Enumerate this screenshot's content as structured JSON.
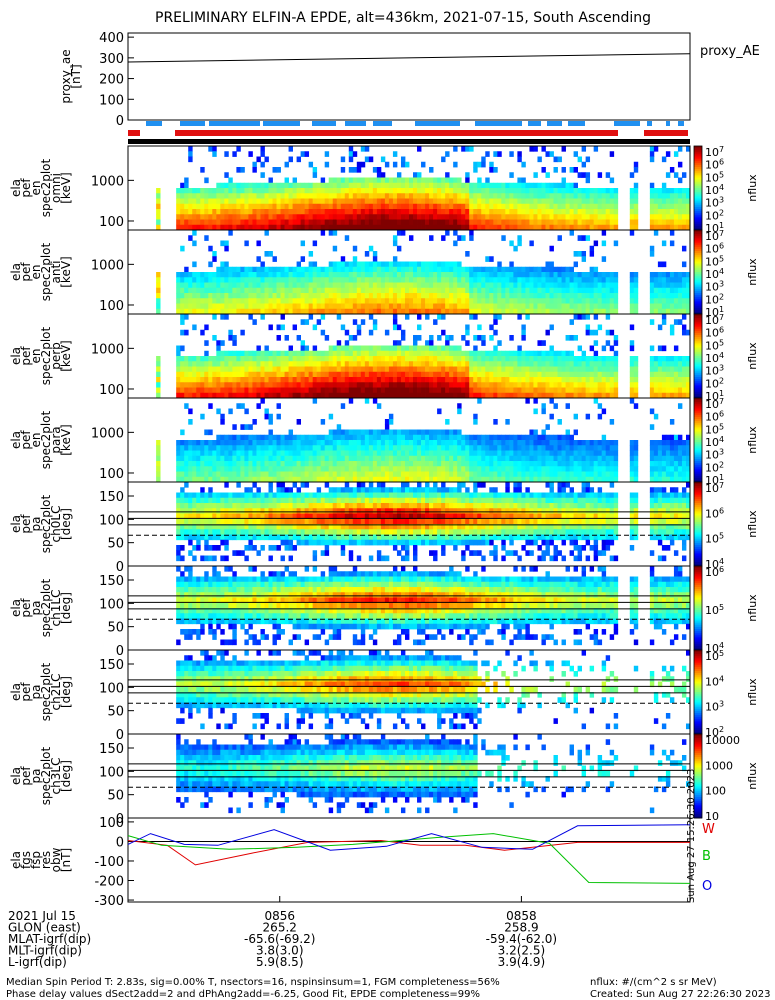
{
  "title": "PRELIMINARY ELFIN-A EPDE, alt=436km, 2021-07-15, South Ascending",
  "proxy": {
    "ylabel": [
      "proxy_ae",
      "[nT]"
    ],
    "ticks": [
      "400",
      "300",
      "200",
      "100",
      "0"
    ],
    "series_name": "proxy_AE",
    "ylim": [
      0,
      420
    ],
    "values": [
      280,
      320
    ]
  },
  "spec_panels": [
    {
      "ylabel": [
        "ela",
        "pef",
        "en",
        "spec2plot",
        "omni",
        "[keV]"
      ],
      "ticks": [
        "1000",
        "100"
      ],
      "cb_ticks": [
        "10^7",
        "10^6",
        "10^5",
        "10^4",
        "10^3",
        "10^2",
        "10^1"
      ],
      "cb_label": "nflux"
    },
    {
      "ylabel": [
        "ela",
        "pef",
        "en",
        "spec2plot",
        "anti",
        "[keV]"
      ],
      "ticks": [
        "1000",
        "100"
      ],
      "cb_ticks": [
        "10^7",
        "10^6",
        "10^5",
        "10^4",
        "10^3",
        "10^2",
        "10^1"
      ],
      "cb_label": "nflux"
    },
    {
      "ylabel": [
        "ela",
        "pef",
        "en",
        "spec2plot",
        "perp",
        "[keV]"
      ],
      "ticks": [
        "1000",
        "100"
      ],
      "cb_ticks": [
        "10^7",
        "10^6",
        "10^5",
        "10^4",
        "10^3",
        "10^2",
        "10^1"
      ],
      "cb_label": "nflux"
    },
    {
      "ylabel": [
        "ela",
        "pef",
        "en",
        "spec2plot",
        "para",
        "[keV]"
      ],
      "ticks": [
        "1000",
        "100"
      ],
      "cb_ticks": [
        "10^7",
        "10^6",
        "10^5",
        "10^4",
        "10^3",
        "10^2",
        "10^1"
      ],
      "cb_label": "nflux"
    },
    {
      "ylabel": [
        "ela",
        "pef",
        "pa",
        "spec2plot",
        "ch0LC",
        "[deg]"
      ],
      "ticks": [
        "150",
        "100",
        "50",
        "0"
      ],
      "cb_ticks": [
        "10^7",
        "10^6",
        "10^5",
        "10^4"
      ],
      "cb_label": "nflux"
    },
    {
      "ylabel": [
        "ela",
        "pef",
        "pa",
        "spec2plot",
        "ch1LC",
        "[deg]"
      ],
      "ticks": [
        "150",
        "100",
        "50",
        "0"
      ],
      "cb_ticks": [
        "10^6",
        "10^5",
        "10^4"
      ],
      "cb_label": "nflux"
    },
    {
      "ylabel": [
        "ela",
        "pef",
        "pa",
        "spec2plot",
        "ch2LC",
        "[deg]"
      ],
      "ticks": [
        "150",
        "100",
        "50",
        "0"
      ],
      "cb_ticks": [
        "10^5",
        "10^4",
        "10^3",
        "10^2"
      ],
      "cb_label": "nflux"
    },
    {
      "ylabel": [
        "ela",
        "pef",
        "pa",
        "spec2plot",
        "ch3LC",
        "[deg]"
      ],
      "ticks": [
        "150",
        "100",
        "50",
        "0"
      ],
      "cb_ticks": [
        "10000",
        "1000",
        "100",
        "10"
      ],
      "cb_label": "nflux"
    }
  ],
  "fgm": {
    "ylabel": [
      "ela",
      "fgs",
      "fsp",
      "res",
      "obw",
      "[nT]"
    ],
    "ticks": [
      "100",
      "0",
      "-100",
      "-200",
      "-300"
    ],
    "ylim": [
      -310,
      120
    ],
    "legend": [
      "W",
      "B",
      "O"
    ],
    "colors": [
      "#e00000",
      "#00c000",
      "#0000e0"
    ],
    "series_W": [
      [
        0,
        5
      ],
      [
        0.07,
        -20
      ],
      [
        0.12,
        -120
      ],
      [
        0.22,
        -60
      ],
      [
        0.32,
        -5
      ],
      [
        0.45,
        5
      ],
      [
        0.52,
        -20
      ],
      [
        0.6,
        -20
      ],
      [
        0.67,
        -45
      ],
      [
        0.72,
        -30
      ],
      [
        0.8,
        -5
      ],
      [
        1.0,
        -5
      ]
    ],
    "series_B": [
      [
        0,
        30
      ],
      [
        0.06,
        -20
      ],
      [
        0.18,
        -40
      ],
      [
        0.3,
        -30
      ],
      [
        0.4,
        -15
      ],
      [
        0.55,
        20
      ],
      [
        0.65,
        40
      ],
      [
        0.75,
        -10
      ],
      [
        0.82,
        -210
      ],
      [
        1.0,
        -215
      ]
    ],
    "series_O": [
      [
        0,
        -15
      ],
      [
        0.04,
        40
      ],
      [
        0.1,
        -15
      ],
      [
        0.16,
        -20
      ],
      [
        0.26,
        60
      ],
      [
        0.36,
        -45
      ],
      [
        0.46,
        -25
      ],
      [
        0.54,
        40
      ],
      [
        0.63,
        -30
      ],
      [
        0.72,
        -40
      ],
      [
        0.8,
        80
      ],
      [
        1.0,
        85
      ]
    ]
  },
  "side_text": "Sun Aug 27 15:26:30 2023",
  "footer": {
    "rows": [
      {
        "label": "2021 Jul 15",
        "v1": "0856",
        "v2": "0858"
      },
      {
        "label": "GLON (east)",
        "v1": "265.2",
        "v2": "258.9"
      },
      {
        "label": "MLAT-igrf(dip)",
        "v1": "-65.6(-69.2)",
        "v2": "-59.4(-62.0)"
      },
      {
        "label": "MLT-igrf(dip)",
        "v1": "3.8(3.0)",
        "v2": "3.2(2.5)"
      },
      {
        "label": "L-igrf(dip)",
        "v1": "5.9(8.5)",
        "v2": "3.9(4.9)"
      }
    ],
    "line1": "Median Spin Period T: 2.83s, sig=0.00% T, nsectors=16, nspinsinsum=1, FGM completeness=56%",
    "line2": "Phase delay values dSect2add=2 and dPhAng2add=-6.25, Good Fit, EPDE completeness=99%",
    "units": "nflux: #/(cm^2 s sr MeV)",
    "created": "Created: Sun Aug 27 22:26:30 2023"
  }
}
